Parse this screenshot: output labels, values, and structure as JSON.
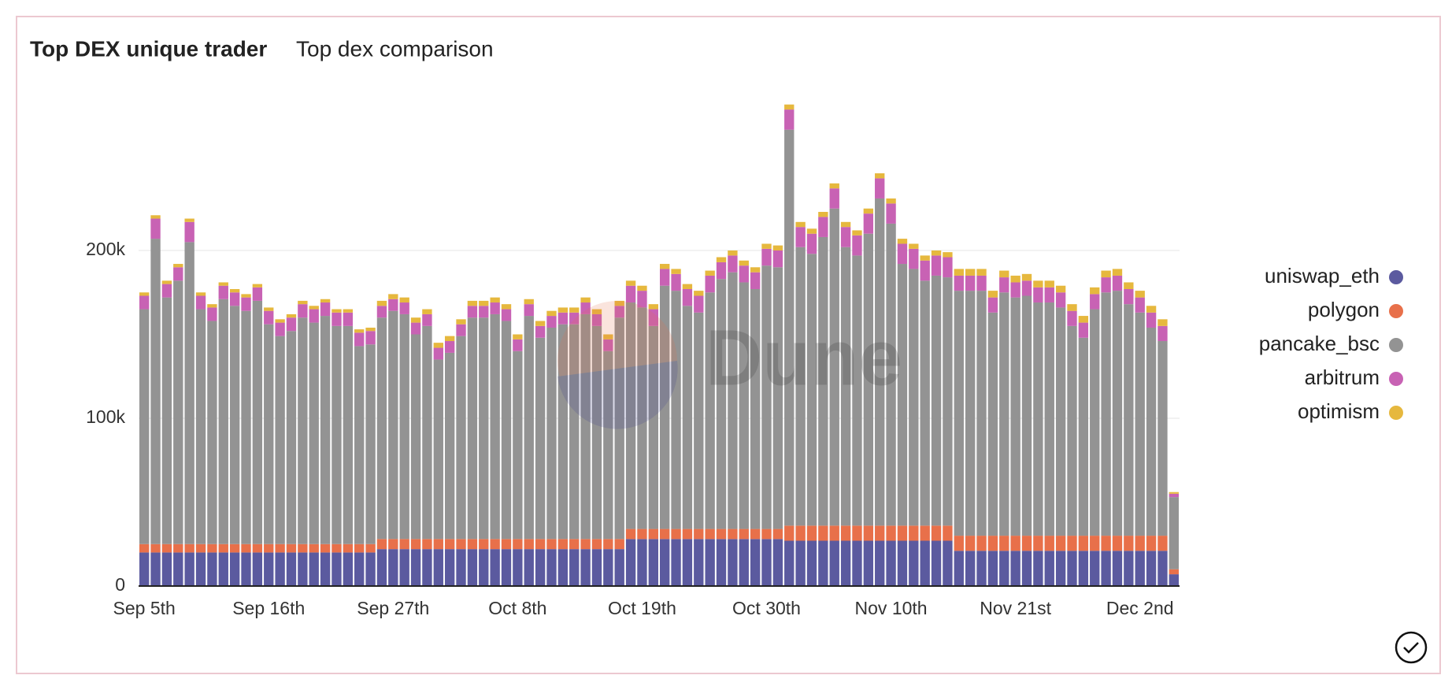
{
  "chart_data": {
    "type": "stacked_bar",
    "title": "Top DEX unique trader",
    "subtitle": "Top dex comparison",
    "watermark": "Dune",
    "categories": [
      "Sep 5th",
      null,
      null,
      null,
      null,
      null,
      null,
      null,
      null,
      null,
      null,
      "Sep 16th",
      null,
      null,
      null,
      null,
      null,
      null,
      null,
      null,
      null,
      null,
      "Sep 27th",
      null,
      null,
      null,
      null,
      null,
      null,
      null,
      null,
      null,
      null,
      "Oct 8th",
      null,
      null,
      null,
      null,
      null,
      null,
      null,
      null,
      null,
      null,
      "Oct 19th",
      null,
      null,
      null,
      null,
      null,
      null,
      null,
      null,
      null,
      null,
      "Oct 30th",
      null,
      null,
      null,
      null,
      null,
      null,
      null,
      null,
      null,
      null,
      "Nov 10th",
      null,
      null,
      null,
      null,
      null,
      null,
      null,
      null,
      null,
      null,
      "Nov 21st",
      null,
      null,
      null,
      null,
      null,
      null,
      null,
      null,
      null,
      null,
      "Dec 2nd",
      null,
      null,
      null
    ],
    "series": [
      {
        "name": "uniswap_eth",
        "color": "#5b5a9f",
        "values": [
          20000,
          20000,
          20000,
          20000,
          20000,
          20000,
          20000,
          20000,
          20000,
          20000,
          20000,
          20000,
          20000,
          20000,
          20000,
          20000,
          20000,
          20000,
          20000,
          20000,
          20000,
          22000,
          22000,
          22000,
          22000,
          22000,
          22000,
          22000,
          22000,
          22000,
          22000,
          22000,
          22000,
          22000,
          22000,
          22000,
          22000,
          22000,
          22000,
          22000,
          22000,
          22000,
          22000,
          28000,
          28000,
          28000,
          28000,
          28000,
          28000,
          28000,
          28000,
          28000,
          28000,
          28000,
          28000,
          28000,
          28000,
          27000,
          27000,
          27000,
          27000,
          27000,
          27000,
          27000,
          27000,
          27000,
          27000,
          27000,
          27000,
          27000,
          27000,
          27000,
          21000,
          21000,
          21000,
          21000,
          21000,
          21000,
          21000,
          21000,
          21000,
          21000,
          21000,
          21000,
          21000,
          21000,
          21000,
          21000,
          21000,
          21000,
          21000,
          7000
        ]
      },
      {
        "name": "polygon",
        "color": "#e8704a",
        "values": [
          5000,
          5000,
          5000,
          5000,
          5000,
          5000,
          5000,
          5000,
          5000,
          5000,
          5000,
          5000,
          5000,
          5000,
          5000,
          5000,
          5000,
          5000,
          5000,
          5000,
          5000,
          6000,
          6000,
          6000,
          6000,
          6000,
          6000,
          6000,
          6000,
          6000,
          6000,
          6000,
          6000,
          6000,
          6000,
          6000,
          6000,
          6000,
          6000,
          6000,
          6000,
          6000,
          6000,
          6000,
          6000,
          6000,
          6000,
          6000,
          6000,
          6000,
          6000,
          6000,
          6000,
          6000,
          6000,
          6000,
          6000,
          9000,
          9000,
          9000,
          9000,
          9000,
          9000,
          9000,
          9000,
          9000,
          9000,
          9000,
          9000,
          9000,
          9000,
          9000,
          9000,
          9000,
          9000,
          9000,
          9000,
          9000,
          9000,
          9000,
          9000,
          9000,
          9000,
          9000,
          9000,
          9000,
          9000,
          9000,
          9000,
          9000,
          9000,
          3000
        ]
      },
      {
        "name": "pancake_bsc",
        "color": "#939393",
        "values": [
          140000,
          182000,
          147000,
          157000,
          180000,
          140000,
          133000,
          146000,
          142000,
          139000,
          145000,
          131000,
          124000,
          127000,
          135000,
          132000,
          136000,
          130000,
          130000,
          118000,
          119000,
          132000,
          136000,
          134000,
          122000,
          127000,
          107000,
          111000,
          121000,
          132000,
          132000,
          134000,
          130000,
          112000,
          133000,
          120000,
          126000,
          128000,
          128000,
          134000,
          127000,
          112000,
          132000,
          135000,
          132000,
          121000,
          145000,
          142000,
          133000,
          129000,
          141000,
          149000,
          153000,
          147000,
          143000,
          157000,
          156000,
          236000,
          166000,
          162000,
          172000,
          189000,
          166000,
          161000,
          174000,
          195000,
          180000,
          156000,
          153000,
          146000,
          149000,
          148000,
          146000,
          146000,
          146000,
          133000,
          145000,
          142000,
          143000,
          139000,
          139000,
          136000,
          125000,
          118000,
          135000,
          145000,
          146000,
          138000,
          133000,
          124000,
          116000,
          43000
        ]
      },
      {
        "name": "arbitrum",
        "color": "#c862b4",
        "values": [
          8000,
          12000,
          8000,
          8000,
          12000,
          8000,
          8000,
          8000,
          8000,
          8000,
          8000,
          8000,
          8000,
          8000,
          8000,
          8000,
          8000,
          8000,
          8000,
          8000,
          8000,
          7000,
          7000,
          7000,
          7000,
          7000,
          7000,
          7000,
          7000,
          7000,
          7000,
          7000,
          7000,
          7000,
          7000,
          7000,
          7000,
          7000,
          7000,
          7000,
          7000,
          7000,
          7000,
          10000,
          10000,
          10000,
          10000,
          10000,
          10000,
          10000,
          10000,
          10000,
          10000,
          10000,
          10000,
          10000,
          10000,
          12000,
          12000,
          12000,
          12000,
          12000,
          12000,
          12000,
          12000,
          12000,
          12000,
          12000,
          12000,
          12000,
          12000,
          12000,
          9000,
          9000,
          9000,
          9000,
          9000,
          9000,
          9000,
          9000,
          9000,
          9000,
          9000,
          9000,
          9000,
          9000,
          9000,
          9000,
          9000,
          9000,
          9000,
          2000
        ]
      },
      {
        "name": "optimism",
        "color": "#e6b83e",
        "values": [
          2000,
          2000,
          2000,
          2000,
          2000,
          2000,
          2000,
          2000,
          2000,
          2000,
          2000,
          2000,
          2000,
          2000,
          2000,
          2000,
          2000,
          2000,
          2000,
          2000,
          2000,
          3000,
          3000,
          3000,
          3000,
          3000,
          3000,
          3000,
          3000,
          3000,
          3000,
          3000,
          3000,
          3000,
          3000,
          3000,
          3000,
          3000,
          3000,
          3000,
          3000,
          3000,
          3000,
          3000,
          3000,
          3000,
          3000,
          3000,
          3000,
          3000,
          3000,
          3000,
          3000,
          3000,
          3000,
          3000,
          3000,
          3000,
          3000,
          3000,
          3000,
          3000,
          3000,
          3000,
          3000,
          3000,
          3000,
          3000,
          3000,
          3000,
          3000,
          3000,
          4000,
          4000,
          4000,
          4000,
          4000,
          4000,
          4000,
          4000,
          4000,
          4000,
          4000,
          4000,
          4000,
          4000,
          4000,
          4000,
          4000,
          4000,
          4000,
          1000
        ]
      }
    ],
    "ylim": [
      0,
      300000
    ],
    "yticks": [
      {
        "value": 0,
        "label": "0"
      },
      {
        "value": 100000,
        "label": "100k"
      },
      {
        "value": 200000,
        "label": "200k"
      }
    ],
    "grid": true,
    "legend": "right"
  }
}
